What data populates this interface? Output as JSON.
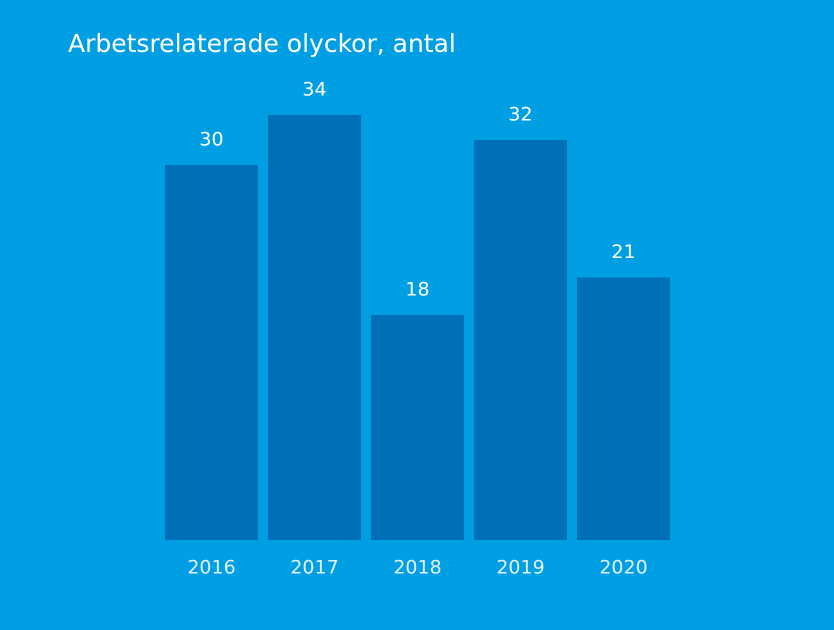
{
  "chart_data": {
    "type": "bar",
    "title": "Arbetsrelaterade olyckor, antal",
    "categories": [
      "2016",
      "2017",
      "2018",
      "2019",
      "2020"
    ],
    "values": [
      30,
      34,
      18,
      32,
      21
    ],
    "color": "#0071b9",
    "ylim": [
      0,
      40
    ]
  }
}
